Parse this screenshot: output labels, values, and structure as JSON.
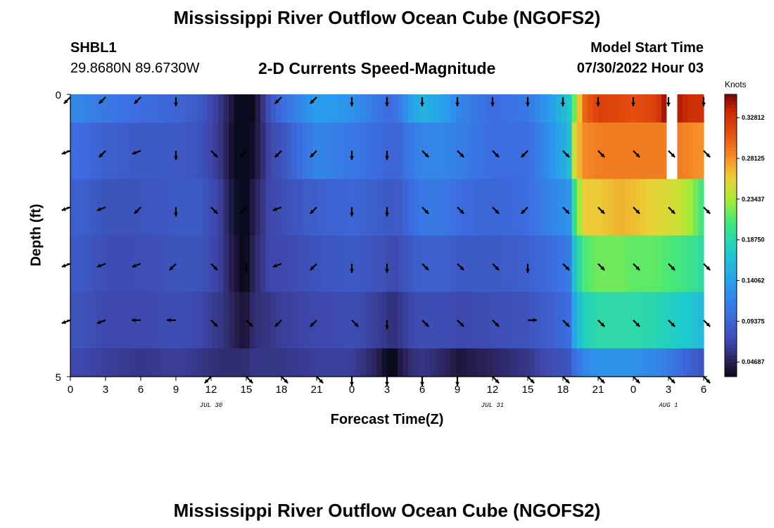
{
  "page": {
    "title_top": "Mississippi River Outflow Ocean Cube (NGOFS2)",
    "title_bottom": "Mississippi River Outflow Ocean Cube (NGOFS2)",
    "station_id": "SHBL1",
    "station_coords": "29.8680N  89.6730W",
    "plot_subtitle": "2-D Currents Speed-Magnitude",
    "model_start_label": "Model Start Time",
    "model_start_value": "07/30/2022 Hour 03"
  },
  "chart_data": {
    "type": "heatmap",
    "title": "2-D Currents Speed-Magnitude",
    "xlabel": "Forecast Time(Z)",
    "ylabel": "Depth (ft)",
    "colorbar_label": "Knots",
    "x_tick_labels": [
      "0",
      "3",
      "6",
      "9",
      "12",
      "15",
      "18",
      "21",
      "0",
      "3",
      "6",
      "9",
      "12",
      "15",
      "18",
      "21",
      "0",
      "3",
      "6"
    ],
    "x_date_labels": [
      {
        "text": "JUL 30",
        "at_hour": 12
      },
      {
        "text": "JUL 31",
        "at_hour": 36
      },
      {
        "text": "AUG 1",
        "at_hour": 51
      }
    ],
    "y_tick_labels": [
      "0",
      "5"
    ],
    "y_range": [
      0,
      5
    ],
    "x_range_hours": [
      0,
      54
    ],
    "colorbar_ticks": [
      "0.32812",
      "0.28125",
      "0.23437",
      "0.18750",
      "0.14062",
      "0.09375",
      "0.04687"
    ],
    "colorbar_values": [
      0.32812,
      0.28125,
      0.23437,
      0.1875,
      0.14062,
      0.09375,
      0.04687
    ],
    "color_range": [
      0.03,
      0.355
    ],
    "depth_layers": [
      0,
      1,
      2,
      3,
      4,
      5
    ],
    "speed_profiles": [
      {
        "h": 0,
        "s": [
          0.12,
          0.1,
          0.09,
          0.085,
          0.08,
          0.07
        ]
      },
      {
        "h": 1,
        "s": [
          0.12,
          0.1,
          0.09,
          0.085,
          0.08,
          0.07
        ]
      },
      {
        "h": 3,
        "s": [
          0.11,
          0.09,
          0.08,
          0.075,
          0.07,
          0.065
        ]
      },
      {
        "h": 6,
        "s": [
          0.1,
          0.085,
          0.08,
          0.075,
          0.07,
          0.06
        ]
      },
      {
        "h": 9,
        "s": [
          0.095,
          0.085,
          0.085,
          0.08,
          0.075,
          0.065
        ]
      },
      {
        "h": 11,
        "s": [
          0.085,
          0.08,
          0.085,
          0.08,
          0.07,
          0.06
        ]
      },
      {
        "h": 12.8,
        "s": [
          0.06,
          0.06,
          0.065,
          0.065,
          0.06,
          0.055
        ]
      },
      {
        "h": 13.8,
        "s": [
          0.04,
          0.035,
          0.04,
          0.045,
          0.05,
          0.055
        ]
      },
      {
        "h": 14.6,
        "s": [
          0.02,
          0.02,
          0.025,
          0.03,
          0.04,
          0.055
        ]
      },
      {
        "h": 15,
        "s": [
          0.0,
          0.02,
          0.025,
          0.03,
          0.04,
          0.055
        ]
      },
      {
        "h": 15.6,
        "s": [
          0.03,
          0.035,
          0.045,
          0.05,
          0.055,
          0.06
        ]
      },
      {
        "h": 17,
        "s": [
          0.08,
          0.07,
          0.07,
          0.07,
          0.06,
          0.06
        ]
      },
      {
        "h": 18,
        "s": [
          0.1,
          0.08,
          0.075,
          0.07,
          0.065,
          0.06
        ]
      },
      {
        "h": 21,
        "s": [
          0.14,
          0.12,
          0.09,
          0.08,
          0.07,
          0.065
        ]
      },
      {
        "h": 24,
        "s": [
          0.13,
          0.11,
          0.095,
          0.085,
          0.075,
          0.065
        ]
      },
      {
        "h": 26,
        "s": [
          0.11,
          0.1,
          0.09,
          0.08,
          0.065,
          0.05
        ]
      },
      {
        "h": 27,
        "s": [
          0.1,
          0.095,
          0.085,
          0.075,
          0.06,
          0.03
        ]
      },
      {
        "h": 27.5,
        "s": [
          0.1,
          0.095,
          0.085,
          0.07,
          0.055,
          0.015
        ]
      },
      {
        "h": 28,
        "s": [
          0.11,
          0.095,
          0.085,
          0.075,
          0.06,
          0.04
        ]
      },
      {
        "h": 29,
        "s": [
          0.14,
          0.11,
          0.1,
          0.085,
          0.07,
          0.055
        ]
      },
      {
        "h": 30,
        "s": [
          0.155,
          0.12,
          0.11,
          0.09,
          0.075,
          0.06
        ]
      },
      {
        "h": 32,
        "s": [
          0.14,
          0.12,
          0.11,
          0.09,
          0.075,
          0.05
        ]
      },
      {
        "h": 33,
        "s": [
          0.12,
          0.115,
          0.1,
          0.085,
          0.07,
          0.04
        ]
      },
      {
        "h": 36,
        "s": [
          0.1,
          0.1,
          0.095,
          0.085,
          0.075,
          0.05
        ]
      },
      {
        "h": 39,
        "s": [
          0.11,
          0.1,
          0.1,
          0.09,
          0.08,
          0.06
        ]
      },
      {
        "h": 41,
        "s": [
          0.14,
          0.13,
          0.12,
          0.1,
          0.09,
          0.075
        ]
      },
      {
        "h": 42.5,
        "s": [
          0.17,
          0.16,
          0.13,
          0.11,
          0.1,
          0.08
        ]
      },
      {
        "h": 43,
        "s": [
          0.22,
          0.25,
          0.2,
          0.17,
          0.15,
          0.1
        ]
      },
      {
        "h": 43.8,
        "s": [
          0.3,
          0.285,
          0.26,
          0.21,
          0.18,
          0.12
        ]
      },
      {
        "h": 45,
        "s": [
          0.32,
          0.29,
          0.26,
          0.22,
          0.19,
          0.13
        ]
      },
      {
        "h": 47,
        "s": [
          0.315,
          0.29,
          0.27,
          0.22,
          0.19,
          0.13
        ]
      },
      {
        "h": 48,
        "s": [
          0.31,
          0.29,
          0.265,
          0.215,
          0.19,
          0.13
        ]
      },
      {
        "h": 50,
        "s": [
          0.32,
          0.29,
          0.255,
          0.215,
          0.185,
          0.12
        ]
      },
      {
        "h": 50.9,
        "s": [
          0.355,
          0.29,
          0.25,
          0.21,
          0.18,
          0.11
        ]
      },
      {
        "h": 51.1,
        "s": [
          0.355,
          0.29,
          0.25,
          0.21,
          0.18,
          0.11
        ]
      },
      {
        "h": 52,
        "s": [
          0.34,
          0.29,
          0.245,
          0.205,
          0.175,
          0.1
        ]
      },
      {
        "h": 53,
        "s": [
          0.33,
          0.285,
          0.23,
          0.2,
          0.17,
          0.09
        ]
      },
      {
        "h": 54,
        "s": [
          0.33,
          0.28,
          0.2,
          0.19,
          0.16,
          0.08
        ]
      }
    ],
    "missing_cell": {
      "hour_from": 50.9,
      "hour_to": 51.8,
      "depth_from": 0,
      "depth_to": 1
    },
    "vector_hours": [
      0,
      3,
      6,
      9,
      12,
      15,
      18,
      21,
      24,
      27,
      30,
      33,
      36,
      39,
      42,
      45,
      48,
      51,
      54
    ],
    "vector_depths": [
      0.05,
      1,
      2,
      3,
      4,
      5
    ],
    "vector_directions_deg": [
      [
        225,
        225,
        225,
        270,
        null,
        null,
        225,
        225,
        270,
        270,
        270,
        270,
        270,
        270,
        270,
        270,
        270,
        270,
        270
      ],
      [
        200,
        225,
        200,
        270,
        315,
        225,
        225,
        225,
        270,
        270,
        315,
        315,
        315,
        225,
        315,
        315,
        315,
        315,
        315
      ],
      [
        200,
        200,
        225,
        270,
        315,
        225,
        200,
        225,
        270,
        270,
        315,
        315,
        315,
        225,
        315,
        315,
        315,
        315,
        315
      ],
      [
        200,
        200,
        200,
        225,
        315,
        270,
        200,
        225,
        270,
        270,
        315,
        315,
        315,
        270,
        315,
        315,
        315,
        315,
        315
      ],
      [
        200,
        200,
        180,
        180,
        315,
        315,
        225,
        225,
        315,
        270,
        315,
        315,
        315,
        0,
        315,
        315,
        315,
        315,
        315
      ],
      [
        null,
        null,
        null,
        null,
        225,
        315,
        315,
        315,
        270,
        270,
        270,
        270,
        315,
        315,
        315,
        315,
        315,
        315,
        315
      ]
    ]
  }
}
